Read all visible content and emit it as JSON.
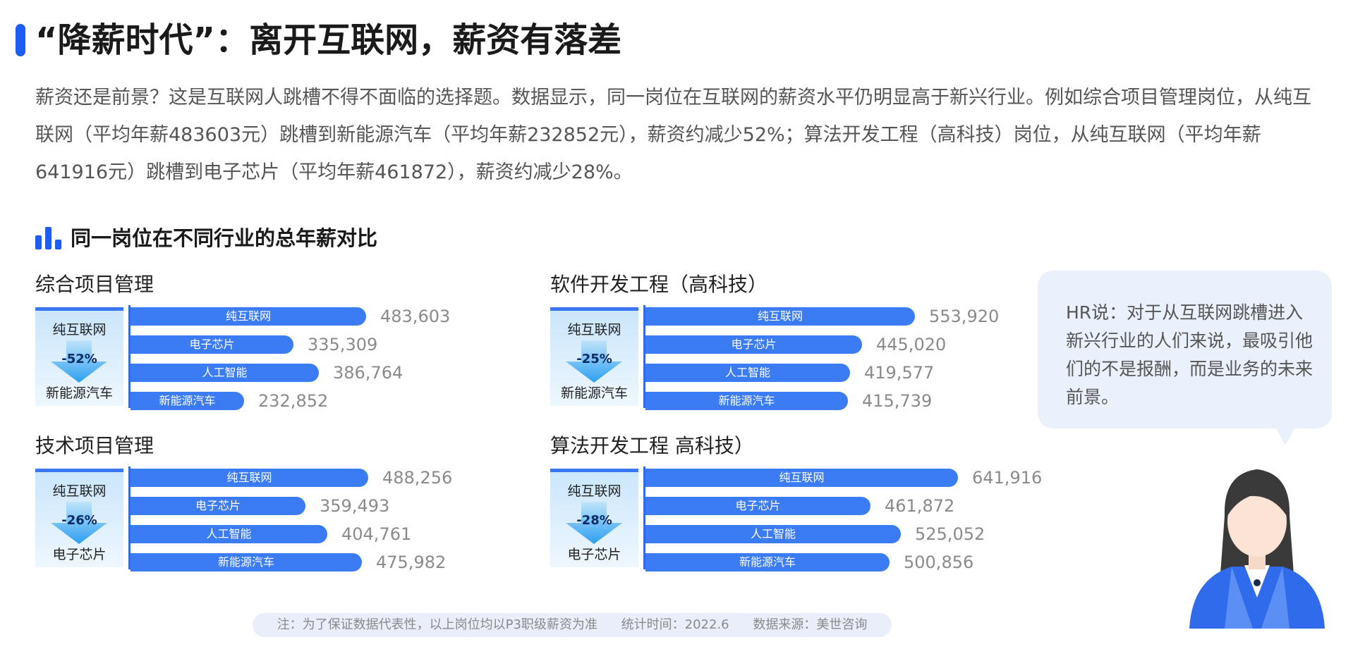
{
  "title": "“降薪时代”：离开互联网，薪资有落差",
  "intro": "薪资还是前景？这是互联网人跳槽不得不面临的选择题。数据显示，同一岗位在互联网的薪资水平仍明显高于新兴行业。例如综合项目管理岗位，从纯互联网（平均年薪483603元）跳槽到新能源汽车（平均年薪232852元），薪资约减少52%；算法开发工程（高科技）岗位，从纯互联网（平均年薪641916元）跳槽到电子芯片（平均年薪461872），薪资约减少28%。",
  "section_title": "同一岗位在不同行业的总年薪对比",
  "colors": {
    "accent": "#1f5cf2",
    "bar": "#3b7cf5",
    "badge": "#cbe6fb"
  },
  "chart_data": [
    {
      "type": "bar",
      "title": "综合项目管理",
      "categories": [
        "纯互联网",
        "电子芯片",
        "人工智能",
        "新能源汽车"
      ],
      "values": [
        483603,
        335309,
        386764,
        232852
      ],
      "value_labels": [
        "483,603",
        "335,309",
        "386,764",
        "232,852"
      ],
      "compare": {
        "from": "纯互联网",
        "to": "新能源汽车",
        "change": "-52%"
      }
    },
    {
      "type": "bar",
      "title": "软件开发工程（高科技）",
      "categories": [
        "纯互联网",
        "电子芯片",
        "人工智能",
        "新能源汽车"
      ],
      "values": [
        553920,
        445020,
        419577,
        415739
      ],
      "value_labels": [
        "553,920",
        "445,020",
        "419,577",
        "415,739"
      ],
      "compare": {
        "from": "纯互联网",
        "to": "新能源汽车",
        "change": "-25%"
      }
    },
    {
      "type": "bar",
      "title": "技术项目管理",
      "categories": [
        "纯互联网",
        "电子芯片",
        "人工智能",
        "新能源汽车"
      ],
      "values": [
        488256,
        359493,
        404761,
        475982
      ],
      "value_labels": [
        "488,256",
        "359,493",
        "404,761",
        "475,982"
      ],
      "compare": {
        "from": "纯互联网",
        "to": "电子芯片",
        "change": "-26%"
      }
    },
    {
      "type": "bar",
      "title": "算法开发工程 高科技）",
      "categories": [
        "纯互联网",
        "电子芯片",
        "人工智能",
        "新能源汽车"
      ],
      "values": [
        641916,
        461872,
        525052,
        500856
      ],
      "value_labels": [
        "641,916",
        "461,872",
        "525,052",
        "500,856"
      ],
      "compare": {
        "from": "纯互联网",
        "to": "电子芯片",
        "change": "-28%"
      }
    }
  ],
  "bubble_text": "HR说：对于从互联网跳槽进入新兴行业的人们来说，最吸引他们的不是报酬，而是业务的未来前景。",
  "footnote": {
    "note": "注：为了保证数据代表性，以上岗位均以P3职级薪资为准",
    "time": "统计时间：2022.6",
    "source": "数据来源：美世咨询"
  }
}
